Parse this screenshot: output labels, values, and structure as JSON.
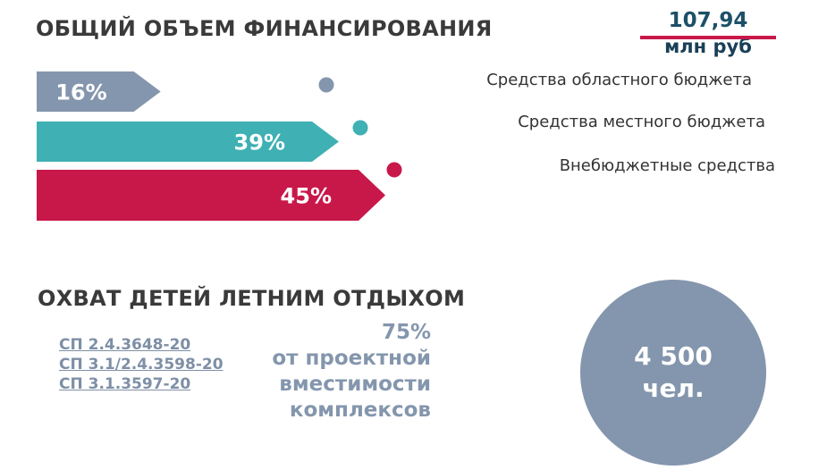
{
  "funding": {
    "title": "ОБЩИЙ ОБЪЕМ ФИНАНСИРОВАНИЯ",
    "total_value": "107,94",
    "total_unit": "млн руб"
  },
  "chart_data": {
    "type": "bar",
    "orientation": "horizontal",
    "title": "ОБЩИЙ ОБЪЕМ ФИНАНСИРОВАНИЯ",
    "unit": "%",
    "categories": [
      "Средства областного бюджета",
      "Средства местного бюджета",
      "Внебюджетные средства"
    ],
    "values": [
      16,
      39,
      45
    ],
    "labels": [
      "16%",
      "39%",
      "45%"
    ],
    "colors": [
      "#8496ad",
      "#3fb0b3",
      "#c8184a"
    ],
    "legend_position": "right"
  },
  "coverage": {
    "title": "ОХВАТ ДЕТЕЙ ЛЕТНИМ ОТДЫХОМ",
    "standards": [
      "СП 2.4.3648-20",
      "СП 3.1/2.4.3598-20",
      "СП 3.1.3597-20"
    ],
    "capacity_lines": [
      "75%",
      "от проектной",
      "вместимости",
      "комплексов"
    ],
    "children_count": "4 500",
    "children_unit": "чел."
  }
}
